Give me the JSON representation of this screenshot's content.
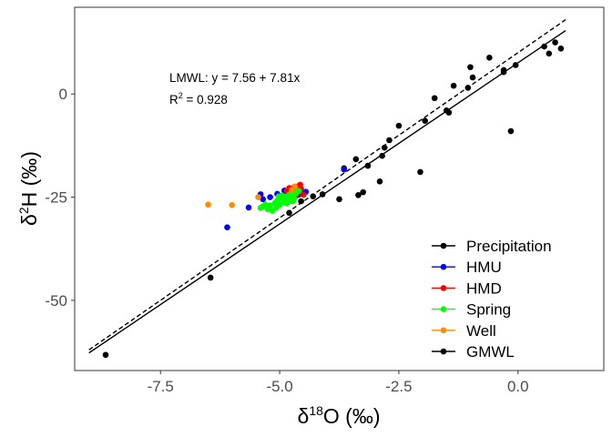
{
  "chart_data": {
    "type": "scatter",
    "xlabel_prefix": "δ",
    "xlabel_sup": "18",
    "xlabel_suffix": "O (‰)",
    "ylabel_prefix": "δ",
    "ylabel_sup": "2",
    "ylabel_suffix": "H (‰)",
    "xlim": [
      -9.3,
      1.8
    ],
    "ylim": [
      -67,
      21
    ],
    "x_ticks": [
      -7.5,
      -5.0,
      -2.5,
      0.0
    ],
    "x_tick_labels": [
      "-7.5",
      "-5.0",
      "-2.5",
      "0.0"
    ],
    "y_ticks": [
      0,
      -25,
      -50
    ],
    "y_tick_labels": [
      "0",
      "-25",
      "-50"
    ],
    "grid": false,
    "legend_position": "bottom-right",
    "annotation": {
      "equation": "LMWL: y = 7.56 + 7.81x",
      "r2_prefix": "R",
      "r2_sup": "2",
      "r2_value": " = 0.928"
    },
    "lines": [
      {
        "name": "LMWL",
        "style": "solid",
        "color": "#000000",
        "intercept": 7.56,
        "slope": 7.81,
        "x_range": [
          -9.0,
          1.0
        ]
      },
      {
        "name": "GMWL",
        "style": "dashed",
        "color": "#000000",
        "intercept": 10,
        "slope": 8,
        "x_range": [
          -9.0,
          1.0
        ]
      }
    ],
    "series": [
      {
        "name": "Precipitation",
        "color": "#000000",
        "points": [
          [
            -8.65,
            -63.2
          ],
          [
            -6.45,
            -44.5
          ],
          [
            -4.8,
            -28.8
          ],
          [
            -4.55,
            -26.0
          ],
          [
            -4.3,
            -24.8
          ],
          [
            -4.1,
            -24.3
          ],
          [
            -3.75,
            -25.5
          ],
          [
            -3.65,
            -18.0
          ],
          [
            -3.4,
            -15.8
          ],
          [
            -3.35,
            -24.5
          ],
          [
            -3.25,
            -23.8
          ],
          [
            -3.15,
            -17.4
          ],
          [
            -2.9,
            -21.2
          ],
          [
            -2.85,
            -15.0
          ],
          [
            -2.8,
            -13.0
          ],
          [
            -2.7,
            -11.2
          ],
          [
            -2.5,
            -7.7
          ],
          [
            -2.05,
            -18.9
          ],
          [
            -1.95,
            -6.5
          ],
          [
            -1.75,
            -1.0
          ],
          [
            -1.5,
            -4.0
          ],
          [
            -1.45,
            -4.5
          ],
          [
            -1.35,
            2.0
          ],
          [
            -1.05,
            1.5
          ],
          [
            -1.0,
            6.5
          ],
          [
            -0.95,
            4.0
          ],
          [
            -0.6,
            8.8
          ],
          [
            -0.3,
            5.8
          ],
          [
            -0.3,
            5.3
          ],
          [
            -0.15,
            -9.0
          ],
          [
            -0.05,
            7.0
          ],
          [
            0.55,
            11.5
          ],
          [
            0.65,
            9.8
          ],
          [
            0.78,
            12.5
          ],
          [
            0.9,
            11.0
          ]
        ]
      },
      {
        "name": "HMU",
        "color": "#0000ff",
        "points": [
          [
            -6.1,
            -32.3
          ],
          [
            -5.65,
            -27.5
          ],
          [
            -5.4,
            -24.3
          ],
          [
            -5.35,
            -25.5
          ],
          [
            -5.2,
            -25.0
          ],
          [
            -5.05,
            -24.2
          ],
          [
            -4.95,
            -24.8
          ],
          [
            -4.9,
            -23.4
          ],
          [
            -4.85,
            -23.8
          ],
          [
            -4.8,
            -24.2
          ],
          [
            -4.7,
            -23.6
          ],
          [
            -4.6,
            -24.4
          ],
          [
            -4.5,
            -24.1
          ],
          [
            -4.45,
            -23.7
          ],
          [
            -3.65,
            -18.3
          ]
        ]
      },
      {
        "name": "HMD",
        "color": "#ff0000",
        "points": [
          [
            -4.85,
            -23.5
          ],
          [
            -4.75,
            -24.0
          ],
          [
            -4.72,
            -23.2
          ],
          [
            -4.7,
            -22.6
          ],
          [
            -4.65,
            -23.8
          ],
          [
            -4.62,
            -22.9
          ],
          [
            -4.6,
            -22.3
          ],
          [
            -4.57,
            -22.0
          ],
          [
            -4.55,
            -23.0
          ],
          [
            -4.5,
            -24.4
          ],
          [
            -4.65,
            -24.6
          ],
          [
            -4.8,
            -22.8
          ]
        ]
      },
      {
        "name": "Spring",
        "color": "#00ff00",
        "points": [
          [
            -5.4,
            -27.6
          ],
          [
            -5.35,
            -27.2
          ],
          [
            -5.3,
            -26.8
          ],
          [
            -5.25,
            -27.9
          ],
          [
            -5.2,
            -27.0
          ],
          [
            -5.15,
            -28.3
          ],
          [
            -5.1,
            -26.4
          ],
          [
            -5.07,
            -27.5
          ],
          [
            -5.05,
            -25.8
          ],
          [
            -5.02,
            -24.8
          ],
          [
            -5.0,
            -26.9
          ],
          [
            -4.98,
            -25.2
          ],
          [
            -4.95,
            -24.6
          ],
          [
            -4.92,
            -26.2
          ],
          [
            -4.9,
            -25.6
          ],
          [
            -4.88,
            -24.9
          ],
          [
            -4.85,
            -26.5
          ],
          [
            -4.82,
            -25.1
          ],
          [
            -4.8,
            -24.4
          ],
          [
            -4.78,
            -25.9
          ],
          [
            -4.75,
            -24.7
          ],
          [
            -4.72,
            -26.0
          ],
          [
            -4.7,
            -25.3
          ],
          [
            -4.67,
            -24.2
          ],
          [
            -4.64,
            -23.8
          ],
          [
            -4.6,
            -23.5
          ]
        ]
      },
      {
        "name": "Well",
        "color": "#ff8c00",
        "points": [
          [
            -6.5,
            -26.8
          ],
          [
            -6.0,
            -26.9
          ],
          [
            -5.45,
            -25.0
          ],
          [
            -4.75,
            -23.3
          ],
          [
            -4.68,
            -22.4
          ]
        ]
      }
    ],
    "legend": [
      "Precipitation",
      "HMU",
      "HMD",
      "Spring",
      "Well",
      "GMWL"
    ]
  }
}
